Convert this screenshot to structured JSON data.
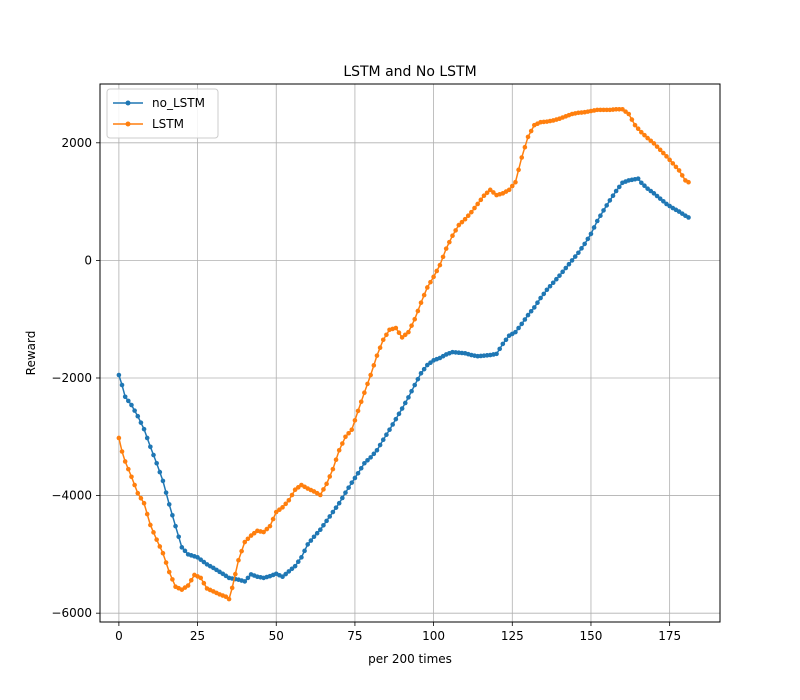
{
  "chart_data": {
    "type": "line",
    "title": "LSTM and No LSTM",
    "xlabel": "per 200 times",
    "ylabel": "Reward",
    "xlim": [
      -6,
      191
    ],
    "ylim": [
      -6150,
      3000
    ],
    "xticks": [
      0,
      25,
      50,
      75,
      100,
      125,
      150,
      175
    ],
    "yticks": [
      -6000,
      -4000,
      -2000,
      0,
      2000
    ],
    "ytick_labels": [
      "−6000",
      "−4000",
      "−2000",
      "0",
      "2000"
    ],
    "grid": true,
    "legend_position": "top-left",
    "series": [
      {
        "name": "no_LSTM",
        "color": "#1f77b4",
        "anchors": [
          [
            0,
            -1950
          ],
          [
            1,
            -2120
          ],
          [
            2,
            -2320
          ],
          [
            4,
            -2460
          ],
          [
            6,
            -2650
          ],
          [
            8,
            -2870
          ],
          [
            10,
            -3170
          ],
          [
            12,
            -3450
          ],
          [
            14,
            -3750
          ],
          [
            16,
            -4150
          ],
          [
            18,
            -4520
          ],
          [
            20,
            -4880
          ],
          [
            22,
            -5000
          ],
          [
            25,
            -5050
          ],
          [
            28,
            -5170
          ],
          [
            30,
            -5230
          ],
          [
            33,
            -5330
          ],
          [
            35,
            -5400
          ],
          [
            38,
            -5430
          ],
          [
            40,
            -5460
          ],
          [
            42,
            -5340
          ],
          [
            44,
            -5380
          ],
          [
            46,
            -5400
          ],
          [
            48,
            -5370
          ],
          [
            50,
            -5330
          ],
          [
            52,
            -5380
          ],
          [
            54,
            -5290
          ],
          [
            56,
            -5200
          ],
          [
            58,
            -5050
          ],
          [
            60,
            -4830
          ],
          [
            62,
            -4700
          ],
          [
            64,
            -4580
          ],
          [
            66,
            -4430
          ],
          [
            68,
            -4280
          ],
          [
            70,
            -4130
          ],
          [
            72,
            -3950
          ],
          [
            74,
            -3780
          ],
          [
            76,
            -3620
          ],
          [
            78,
            -3450
          ],
          [
            80,
            -3350
          ],
          [
            82,
            -3230
          ],
          [
            84,
            -3050
          ],
          [
            86,
            -2880
          ],
          [
            88,
            -2700
          ],
          [
            90,
            -2520
          ],
          [
            92,
            -2330
          ],
          [
            94,
            -2120
          ],
          [
            96,
            -1920
          ],
          [
            98,
            -1780
          ],
          [
            100,
            -1700
          ],
          [
            102,
            -1660
          ],
          [
            104,
            -1600
          ],
          [
            106,
            -1560
          ],
          [
            108,
            -1570
          ],
          [
            110,
            -1580
          ],
          [
            112,
            -1610
          ],
          [
            114,
            -1630
          ],
          [
            116,
            -1620
          ],
          [
            118,
            -1610
          ],
          [
            120,
            -1590
          ],
          [
            122,
            -1420
          ],
          [
            124,
            -1280
          ],
          [
            126,
            -1220
          ],
          [
            128,
            -1080
          ],
          [
            130,
            -930
          ],
          [
            132,
            -800
          ],
          [
            134,
            -640
          ],
          [
            136,
            -500
          ],
          [
            138,
            -380
          ],
          [
            140,
            -260
          ],
          [
            142,
            -130
          ],
          [
            144,
            0
          ],
          [
            146,
            130
          ],
          [
            148,
            280
          ],
          [
            150,
            450
          ],
          [
            152,
            670
          ],
          [
            154,
            850
          ],
          [
            156,
            1020
          ],
          [
            158,
            1180
          ],
          [
            160,
            1320
          ],
          [
            162,
            1360
          ],
          [
            164,
            1380
          ],
          [
            165,
            1390
          ],
          [
            166,
            1320
          ],
          [
            168,
            1220
          ],
          [
            170,
            1140
          ],
          [
            172,
            1050
          ],
          [
            174,
            960
          ],
          [
            176,
            890
          ],
          [
            178,
            830
          ],
          [
            180,
            760
          ],
          [
            181,
            730
          ]
        ]
      },
      {
        "name": "LSTM",
        "color": "#ff7f0e",
        "anchors": [
          [
            0,
            -3020
          ],
          [
            1,
            -3250
          ],
          [
            2,
            -3420
          ],
          [
            4,
            -3680
          ],
          [
            6,
            -3960
          ],
          [
            8,
            -4130
          ],
          [
            10,
            -4500
          ],
          [
            12,
            -4750
          ],
          [
            14,
            -4980
          ],
          [
            16,
            -5300
          ],
          [
            18,
            -5550
          ],
          [
            20,
            -5600
          ],
          [
            22,
            -5530
          ],
          [
            24,
            -5350
          ],
          [
            26,
            -5400
          ],
          [
            28,
            -5580
          ],
          [
            30,
            -5630
          ],
          [
            32,
            -5680
          ],
          [
            34,
            -5720
          ],
          [
            35,
            -5760
          ],
          [
            36,
            -5570
          ],
          [
            38,
            -5100
          ],
          [
            40,
            -4790
          ],
          [
            42,
            -4680
          ],
          [
            44,
            -4600
          ],
          [
            46,
            -4620
          ],
          [
            48,
            -4520
          ],
          [
            50,
            -4280
          ],
          [
            52,
            -4200
          ],
          [
            54,
            -4080
          ],
          [
            56,
            -3900
          ],
          [
            58,
            -3820
          ],
          [
            60,
            -3880
          ],
          [
            62,
            -3930
          ],
          [
            64,
            -3990
          ],
          [
            66,
            -3800
          ],
          [
            68,
            -3550
          ],
          [
            70,
            -3230
          ],
          [
            72,
            -3000
          ],
          [
            74,
            -2880
          ],
          [
            76,
            -2560
          ],
          [
            78,
            -2250
          ],
          [
            80,
            -1950
          ],
          [
            82,
            -1620
          ],
          [
            84,
            -1350
          ],
          [
            86,
            -1180
          ],
          [
            88,
            -1150
          ],
          [
            90,
            -1310
          ],
          [
            92,
            -1220
          ],
          [
            94,
            -1000
          ],
          [
            96,
            -720
          ],
          [
            98,
            -460
          ],
          [
            100,
            -280
          ],
          [
            102,
            -80
          ],
          [
            104,
            200
          ],
          [
            106,
            420
          ],
          [
            108,
            600
          ],
          [
            110,
            700
          ],
          [
            112,
            820
          ],
          [
            114,
            960
          ],
          [
            116,
            1100
          ],
          [
            118,
            1200
          ],
          [
            120,
            1110
          ],
          [
            122,
            1140
          ],
          [
            124,
            1200
          ],
          [
            126,
            1330
          ],
          [
            128,
            1750
          ],
          [
            130,
            2100
          ],
          [
            132,
            2300
          ],
          [
            134,
            2350
          ],
          [
            136,
            2360
          ],
          [
            138,
            2380
          ],
          [
            140,
            2410
          ],
          [
            142,
            2450
          ],
          [
            144,
            2490
          ],
          [
            146,
            2510
          ],
          [
            148,
            2520
          ],
          [
            150,
            2540
          ],
          [
            152,
            2560
          ],
          [
            154,
            2560
          ],
          [
            156,
            2560
          ],
          [
            158,
            2570
          ],
          [
            160,
            2570
          ],
          [
            162,
            2490
          ],
          [
            164,
            2300
          ],
          [
            166,
            2180
          ],
          [
            168,
            2080
          ],
          [
            170,
            1990
          ],
          [
            172,
            1880
          ],
          [
            174,
            1770
          ],
          [
            176,
            1650
          ],
          [
            178,
            1530
          ],
          [
            180,
            1360
          ],
          [
            181,
            1330
          ]
        ]
      }
    ]
  }
}
